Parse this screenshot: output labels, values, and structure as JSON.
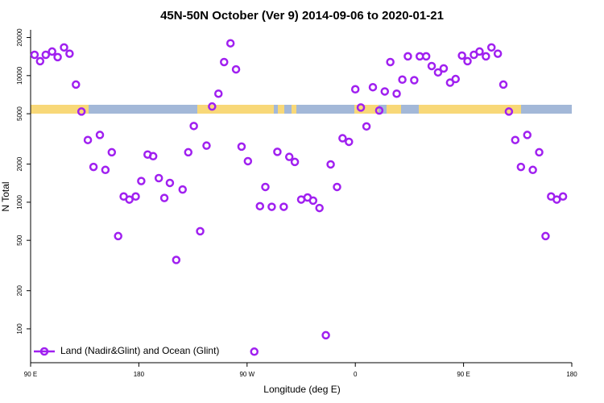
{
  "chart_data": {
    "type": "scatter",
    "title": "45N-50N October (Ver 9)   2014-09-06 to 2020-01-21",
    "x_label": "Longitude (deg E)",
    "y_label": "N Total",
    "y_scale": "log",
    "legend_position": "bottom-left",
    "xlim": [
      90,
      540
    ],
    "xticks": [
      {
        "value": 90,
        "label": "90 E"
      },
      180,
      {
        "value": 270,
        "label": "90 W"
      },
      {
        "value": 360,
        "label": "0"
      },
      {
        "value": 450,
        "label": "90 E"
      },
      {
        "value": 540,
        "label": "180"
      }
    ],
    "ylim": [
      54,
      23000
    ],
    "yticks": [
      100,
      200,
      500,
      1000,
      2000,
      5000,
      10000,
      20000
    ],
    "series": [
      {
        "name": "Land (Nadir&Glint) and Ocean (Glint)",
        "color": "#a020f0",
        "x": [
          93.3,
          97.9,
          102.6,
          107.9,
          112.5,
          117.8,
          122.4,
          127.7,
          132.3,
          137.6,
          142.3,
          147.6,
          152.2,
          157.5,
          162.8,
          167.4,
          172.1,
          177.4,
          182.0,
          187.3,
          191.9,
          196.6,
          201.2,
          205.8,
          211.1,
          216.4,
          221.1,
          225.7,
          231.0,
          236.3,
          240.9,
          246.2,
          250.9,
          256.2,
          260.8,
          265.4,
          270.7,
          276.0,
          280.7,
          285.2,
          290.5,
          295.2,
          300.5,
          305.1,
          309.7,
          315.0,
          320.3,
          324.9,
          330.2,
          335.5,
          339.5,
          344.8,
          349.4,
          354.7,
          360.0,
          364.6,
          369.3,
          374.6,
          379.9,
          384.5,
          389.1,
          394.4,
          399.1,
          403.7,
          409.0,
          413.6,
          418.9,
          423.5,
          428.8,
          433.5,
          438.8,
          443.4,
          448.7,
          453.3,
          458.6,
          463.3,
          468.6,
          473.2,
          478.5,
          483.1,
          487.7,
          493.0,
          497.7,
          503.0,
          507.6,
          512.9,
          518.2,
          522.8,
          527.5,
          532.7
        ],
        "values": [
          14600,
          13000,
          14600,
          15500,
          14000,
          16700,
          14900,
          8500,
          5200,
          3100,
          1900,
          3400,
          1800,
          2480,
          540,
          1110,
          1050,
          1110,
          1470,
          2380,
          2310,
          1550,
          1080,
          1420,
          350,
          1260,
          2480,
          4000,
          590,
          2800,
          5700,
          7200,
          12800,
          18000,
          11200,
          2750,
          2110,
          66,
          930,
          1320,
          920,
          2500,
          920,
          2280,
          2080,
          1050,
          1090,
          1030,
          900,
          89,
          1990,
          1320,
          3200,
          3000,
          7800,
          5600,
          3970,
          8100,
          5300,
          7500,
          12800,
          7200,
          9300,
          14200,
          9200,
          14200,
          14200,
          11900,
          10600,
          11400,
          8800,
          9400,
          14400,
          13000,
          14600,
          15500,
          14200,
          16700,
          14900,
          8500,
          5200,
          3100,
          1900,
          3400,
          1800,
          2480,
          540,
          1110,
          1050,
          1110
        ]
      }
    ]
  }
}
